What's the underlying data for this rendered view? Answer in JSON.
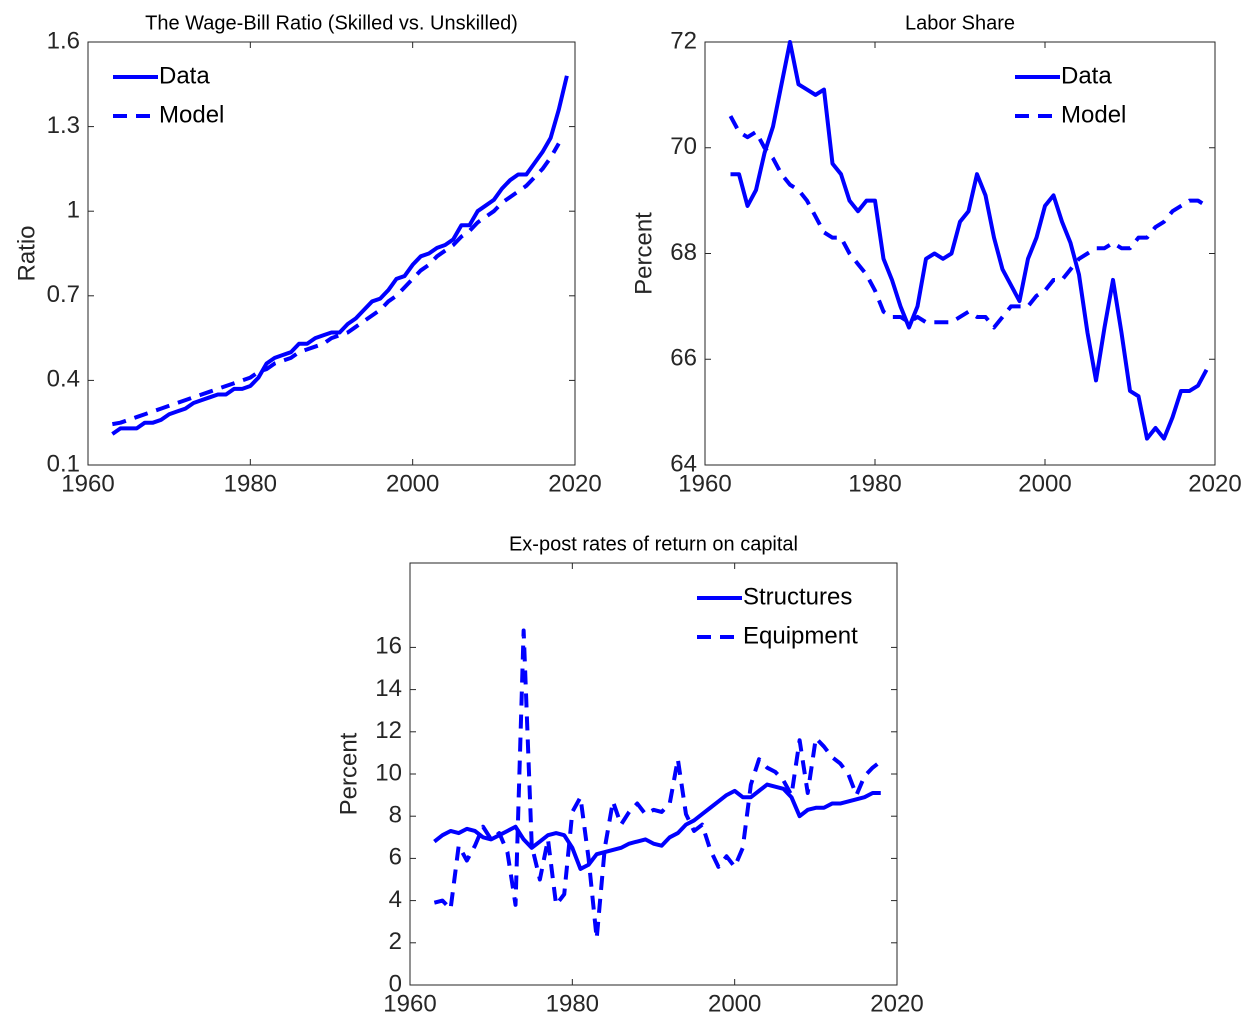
{
  "chart_data": [
    {
      "type": "line",
      "title": "The Wage-Bill Ratio (Skilled vs. Unskilled)",
      "ylabel": "Ratio",
      "legend": "northwest",
      "xlim": [
        1960,
        2020
      ],
      "xticks": [
        1960,
        1980,
        2000,
        2020
      ],
      "ylim": [
        0.1,
        1.6
      ],
      "yticks": [
        0.1,
        0.4,
        0.7,
        1,
        1.3,
        1.6
      ],
      "x": [
        1963,
        1964,
        1965,
        1966,
        1967,
        1968,
        1969,
        1970,
        1971,
        1972,
        1973,
        1974,
        1975,
        1976,
        1977,
        1978,
        1979,
        1980,
        1981,
        1982,
        1983,
        1984,
        1985,
        1986,
        1987,
        1988,
        1989,
        1990,
        1991,
        1992,
        1993,
        1994,
        1995,
        1996,
        1997,
        1998,
        1999,
        2000,
        2001,
        2002,
        2003,
        2004,
        2005,
        2006,
        2007,
        2008,
        2009,
        2010,
        2011,
        2012,
        2013,
        2014,
        2015,
        2016,
        2017,
        2018,
        2019
      ],
      "series": [
        {
          "name": "Data",
          "color": "#0000ff",
          "dashed": false,
          "values": [
            0.21,
            0.23,
            0.23,
            0.23,
            0.25,
            0.25,
            0.26,
            0.28,
            0.29,
            0.3,
            0.32,
            0.33,
            0.34,
            0.35,
            0.35,
            0.37,
            0.37,
            0.38,
            0.41,
            0.46,
            0.48,
            0.49,
            0.5,
            0.53,
            0.53,
            0.55,
            0.56,
            0.57,
            0.57,
            0.6,
            0.62,
            0.65,
            0.68,
            0.69,
            0.72,
            0.76,
            0.77,
            0.81,
            0.84,
            0.85,
            0.87,
            0.88,
            0.9,
            0.95,
            0.95,
            1.0,
            1.02,
            1.04,
            1.08,
            1.11,
            1.13,
            1.13,
            1.17,
            1.21,
            1.26,
            1.36,
            1.48
          ]
        },
        {
          "name": "Model",
          "color": "#0000ff",
          "dashed": true,
          "values": [
            0.245,
            0.25,
            0.26,
            0.27,
            0.28,
            0.29,
            0.3,
            0.31,
            0.32,
            0.33,
            0.34,
            0.35,
            0.36,
            0.37,
            0.38,
            0.39,
            0.4,
            0.41,
            0.43,
            0.44,
            0.46,
            0.47,
            0.48,
            0.5,
            0.51,
            0.52,
            0.53,
            0.55,
            0.56,
            0.57,
            0.59,
            0.61,
            0.63,
            0.65,
            0.68,
            0.7,
            0.73,
            0.76,
            0.79,
            0.81,
            0.84,
            0.86,
            0.88,
            0.91,
            0.93,
            0.96,
            0.98,
            1.0,
            1.03,
            1.05,
            1.07,
            1.09,
            1.12,
            1.15,
            1.19,
            1.24,
            null
          ]
        }
      ]
    },
    {
      "type": "line",
      "title": "Labor Share",
      "ylabel": "Percent",
      "legend": "northeast",
      "xlim": [
        1960,
        2020
      ],
      "xticks": [
        1960,
        1980,
        2000,
        2020
      ],
      "ylim": [
        64,
        72
      ],
      "yticks": [
        64,
        66,
        68,
        70,
        72
      ],
      "x": [
        1963,
        1964,
        1965,
        1966,
        1967,
        1968,
        1969,
        1970,
        1971,
        1972,
        1973,
        1974,
        1975,
        1976,
        1977,
        1978,
        1979,
        1980,
        1981,
        1982,
        1983,
        1984,
        1985,
        1986,
        1987,
        1988,
        1989,
        1990,
        1991,
        1992,
        1993,
        1994,
        1995,
        1996,
        1997,
        1998,
        1999,
        2000,
        2001,
        2002,
        2003,
        2004,
        2005,
        2006,
        2007,
        2008,
        2009,
        2010,
        2011,
        2012,
        2013,
        2014,
        2015,
        2016,
        2017,
        2018,
        2019
      ],
      "series": [
        {
          "name": "Data",
          "color": "#0000ff",
          "dashed": false,
          "values": [
            69.5,
            69.5,
            68.9,
            69.2,
            69.9,
            70.4,
            71.2,
            72.0,
            71.2,
            71.1,
            71.0,
            71.1,
            69.7,
            69.5,
            69.0,
            68.8,
            69.0,
            69.0,
            67.9,
            67.5,
            67.0,
            66.6,
            67.0,
            67.9,
            68.0,
            67.9,
            68.0,
            68.6,
            68.8,
            69.5,
            69.1,
            68.3,
            67.7,
            67.4,
            67.1,
            67.9,
            68.3,
            68.9,
            69.1,
            68.6,
            68.2,
            67.6,
            66.5,
            65.6,
            66.6,
            67.5,
            66.5,
            65.4,
            65.3,
            64.5,
            64.7,
            64.5,
            64.9,
            65.4,
            65.4,
            65.5,
            65.8
          ]
        },
        {
          "name": "Model",
          "color": "#0000ff",
          "dashed": true,
          "values": [
            70.6,
            70.3,
            70.2,
            70.3,
            70.0,
            69.8,
            69.5,
            69.3,
            69.2,
            69.0,
            68.7,
            68.4,
            68.3,
            68.3,
            68.0,
            67.8,
            67.6,
            67.3,
            66.9,
            66.8,
            66.8,
            66.7,
            66.8,
            66.7,
            66.7,
            66.7,
            66.7,
            66.8,
            66.9,
            66.8,
            66.8,
            66.6,
            66.8,
            67.0,
            67.0,
            67.0,
            67.2,
            67.3,
            67.5,
            67.5,
            67.7,
            67.9,
            68.0,
            68.1,
            68.1,
            68.2,
            68.1,
            68.1,
            68.3,
            68.3,
            68.5,
            68.6,
            68.8,
            68.9,
            69.0,
            69.0,
            68.9
          ]
        }
      ]
    },
    {
      "type": "line",
      "title": "Ex-post rates of return on capital",
      "ylabel": "Percent",
      "legend": "northeast",
      "xlim": [
        1960,
        2020
      ],
      "xticks": [
        1960,
        1980,
        2000,
        2020
      ],
      "ylim": [
        0,
        20
      ],
      "yticks": [
        0,
        2,
        4,
        6,
        8,
        10,
        12,
        14,
        16
      ],
      "x": [
        1963,
        1964,
        1965,
        1966,
        1967,
        1968,
        1969,
        1970,
        1971,
        1972,
        1973,
        1974,
        1975,
        1976,
        1977,
        1978,
        1979,
        1980,
        1981,
        1982,
        1983,
        1984,
        1985,
        1986,
        1987,
        1988,
        1989,
        1990,
        1991,
        1992,
        1993,
        1994,
        1995,
        1996,
        1997,
        1998,
        1999,
        2000,
        2001,
        2002,
        2003,
        2004,
        2005,
        2006,
        2007,
        2008,
        2009,
        2010,
        2011,
        2012,
        2013,
        2014,
        2015,
        2016,
        2017,
        2018
      ],
      "series": [
        {
          "name": "Structures",
          "color": "#0000ff",
          "dashed": false,
          "values": [
            6.8,
            7.1,
            7.3,
            7.2,
            7.4,
            7.3,
            7.0,
            6.9,
            7.1,
            7.3,
            7.5,
            6.9,
            6.5,
            6.8,
            7.1,
            7.2,
            7.1,
            6.5,
            5.5,
            5.7,
            6.2,
            6.3,
            6.4,
            6.5,
            6.7,
            6.8,
            6.9,
            6.7,
            6.6,
            7.0,
            7.2,
            7.6,
            7.8,
            8.1,
            8.4,
            8.7,
            9.0,
            9.2,
            8.9,
            8.9,
            9.2,
            9.5,
            9.4,
            9.3,
            8.9,
            8.0,
            8.3,
            8.4,
            8.4,
            8.6,
            8.6,
            8.7,
            8.8,
            8.9,
            9.1,
            9.1
          ]
        },
        {
          "name": "Equipment",
          "color": "#0000ff",
          "dashed": true,
          "values": [
            3.9,
            4.0,
            3.6,
            6.6,
            5.9,
            6.6,
            7.5,
            6.9,
            7.2,
            6.3,
            3.8,
            16.8,
            6.6,
            5.0,
            6.9,
            3.8,
            4.3,
            8.2,
            8.9,
            6.0,
            2.2,
            6.5,
            8.7,
            7.6,
            8.2,
            8.6,
            8.1,
            8.3,
            8.2,
            8.6,
            10.7,
            8.1,
            7.3,
            7.6,
            6.4,
            5.6,
            6.1,
            5.6,
            6.5,
            9.5,
            10.7,
            10.3,
            10.1,
            9.7,
            9.0,
            11.6,
            9.1,
            11.7,
            11.3,
            10.8,
            10.5,
            10.0,
            9.0,
            9.9,
            10.3,
            10.6
          ]
        }
      ]
    }
  ]
}
